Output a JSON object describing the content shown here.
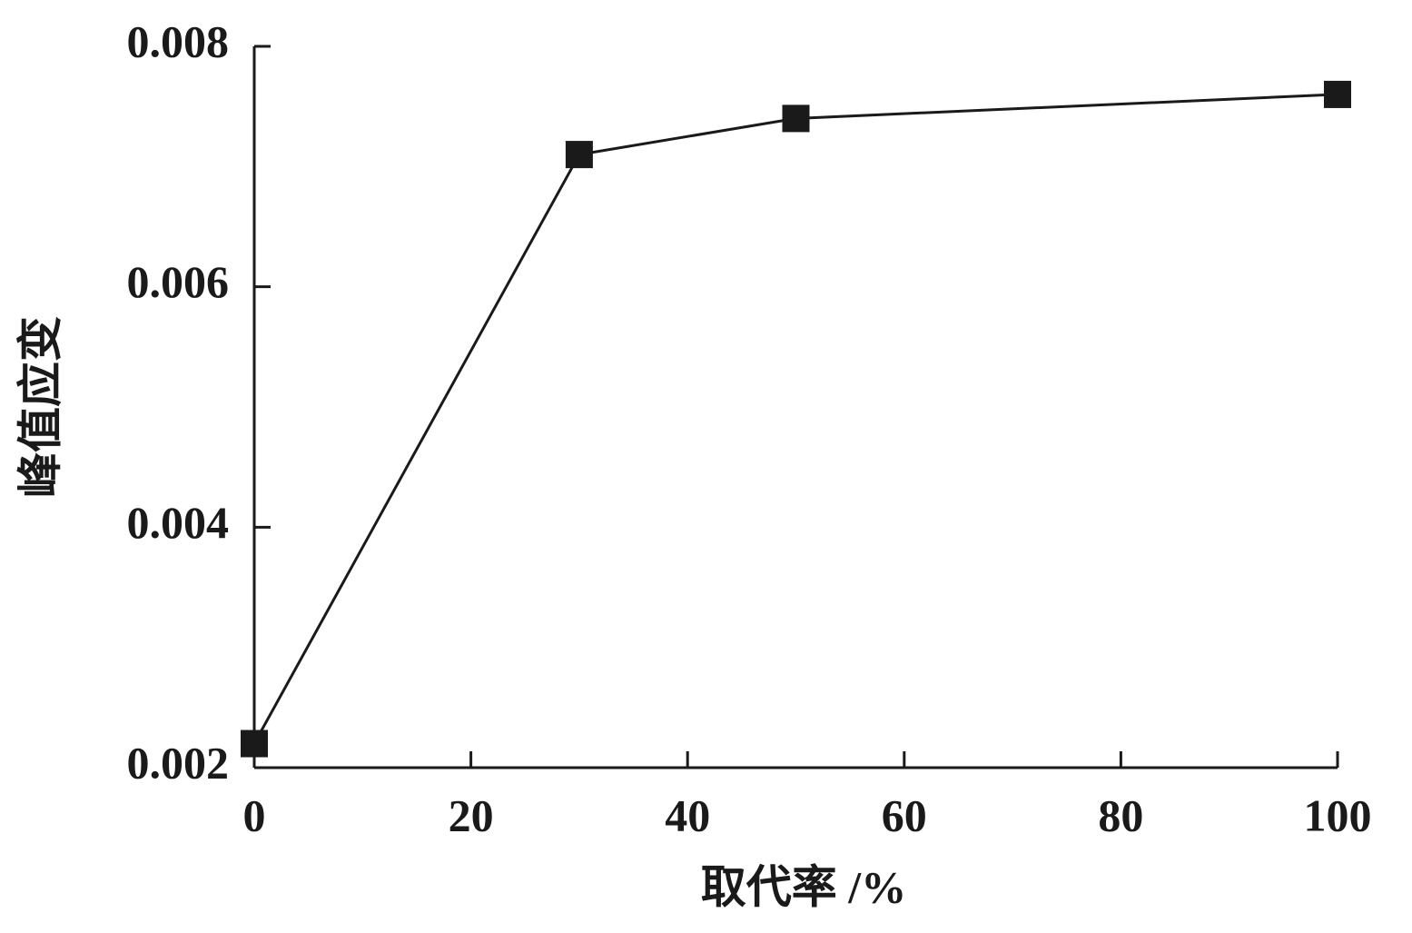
{
  "chart_data": {
    "type": "line",
    "x_label": "取代率 /%",
    "y_label": "峰值应变",
    "x": [
      0,
      30,
      50,
      100
    ],
    "series": [
      {
        "name": null,
        "color": "#1a1a1a",
        "values": [
          0.0022,
          0.0071,
          0.0074,
          0.0076
        ]
      }
    ],
    "xlim": [
      0,
      100
    ],
    "xticks": [
      0,
      20,
      40,
      60,
      80,
      100
    ],
    "ylim": [
      0.002,
      0.008
    ],
    "yticks": [
      0.002,
      0.004,
      0.006,
      0.008
    ],
    "marker": "square",
    "grid": false
  }
}
